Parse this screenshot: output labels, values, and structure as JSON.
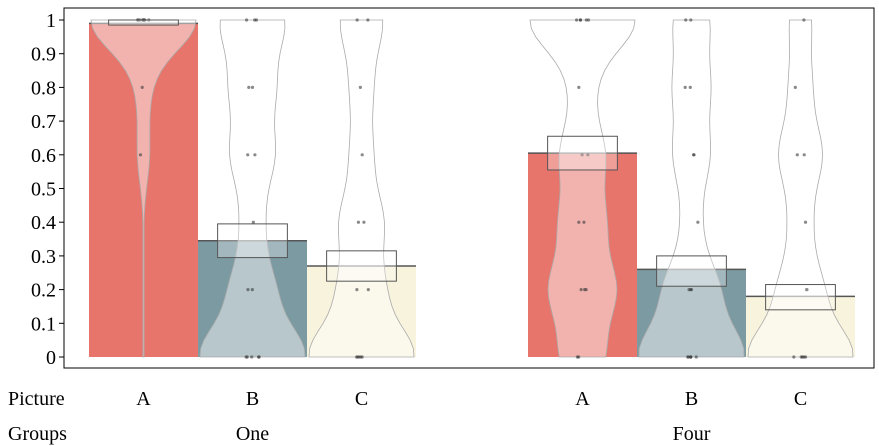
{
  "chart_data": {
    "type": "bar",
    "title": "",
    "xlabel": "",
    "ylabel": "",
    "ylim": [
      0,
      1
    ],
    "yticks": [
      "0",
      "0.1",
      "0.2",
      "0.3",
      "0.4",
      "0.5",
      "0.6",
      "0.7",
      "0.8",
      "0.9",
      "1"
    ],
    "row_labels": {
      "categories": "Picture",
      "groups": "Groups"
    },
    "groups": [
      {
        "name": "One",
        "bars": [
          {
            "category": "A",
            "mean": 0.99,
            "ci": [
              0.985,
              1.0
            ],
            "color": "#e8756c",
            "points": [
              1,
              1,
              1,
              1,
              1,
              1,
              1,
              1,
              1,
              0.8,
              0.6
            ]
          },
          {
            "category": "B",
            "mean": 0.345,
            "ci": [
              0.295,
              0.395
            ],
            "color": "#7c9aa2",
            "points": [
              1,
              1,
              1,
              0.8,
              0.8,
              0.6,
              0.6,
              0.4,
              0.2,
              0.2,
              0,
              0,
              0,
              0,
              0
            ]
          },
          {
            "category": "C",
            "mean": 0.27,
            "ci": [
              0.225,
              0.315
            ],
            "color": "#f7f3dc",
            "points": [
              1,
              1,
              0.8,
              0.6,
              0.4,
              0.4,
              0.2,
              0.2,
              0,
              0,
              0,
              0,
              0
            ]
          }
        ]
      },
      {
        "name": "Four",
        "bars": [
          {
            "category": "A",
            "mean": 0.605,
            "ci": [
              0.555,
              0.655
            ],
            "color": "#e8756c",
            "points": [
              1,
              1,
              1,
              1,
              1,
              0.8,
              0.6,
              0.6,
              0.4,
              0.4,
              0.2,
              0.2,
              0.2,
              0,
              0
            ]
          },
          {
            "category": "B",
            "mean": 0.26,
            "ci": [
              0.21,
              0.3
            ],
            "color": "#7c9aa2",
            "points": [
              1,
              1,
              0.8,
              0.8,
              0.6,
              0.6,
              0.4,
              0.2,
              0.2,
              0.2,
              0,
              0,
              0,
              0,
              0,
              0
            ]
          },
          {
            "category": "C",
            "mean": 0.18,
            "ci": [
              0.14,
              0.215
            ],
            "color": "#f7f3dc",
            "points": [
              1,
              0.8,
              0.6,
              0.6,
              0.4,
              0.2,
              0.2,
              0,
              0,
              0,
              0,
              0
            ]
          }
        ]
      }
    ]
  }
}
